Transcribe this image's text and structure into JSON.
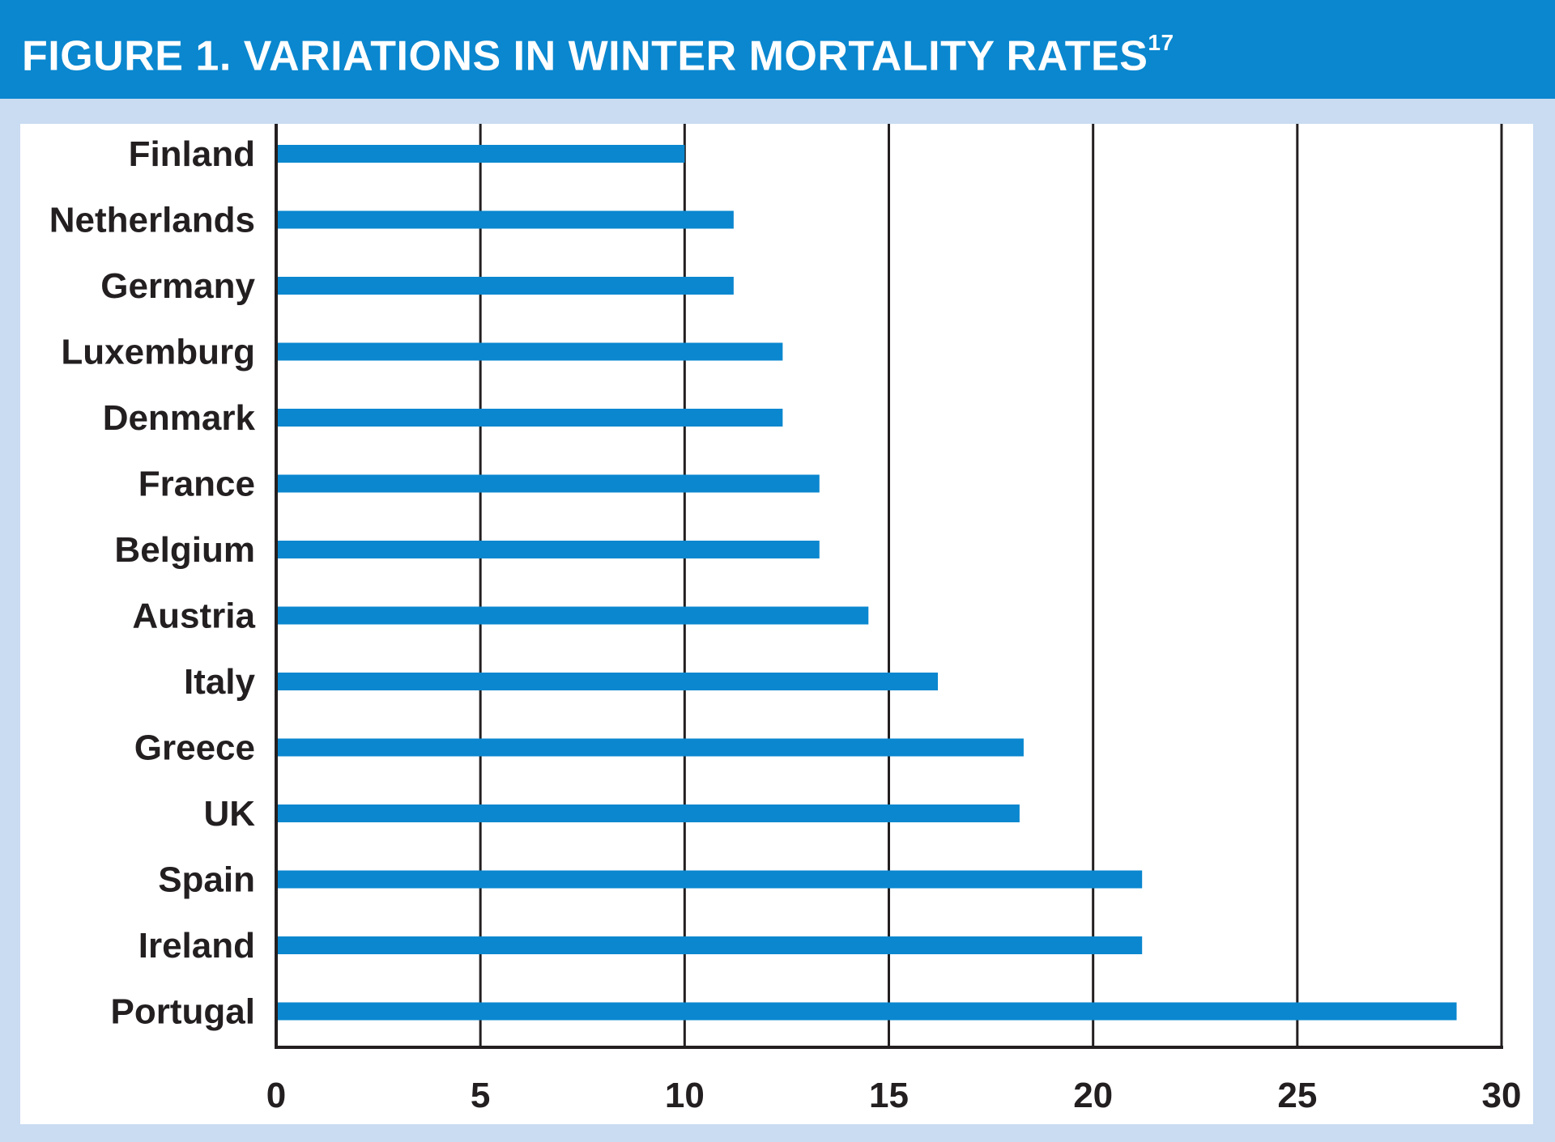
{
  "header": {
    "title": "FIGURE 1. VARIATIONS IN WINTER MORTALITY RATES",
    "superscript": "17"
  },
  "colors": {
    "header_bg": "#0a87cf",
    "bar": "#0a87cf",
    "frame": "#c9dcf2",
    "axis": "#231f20"
  },
  "chart_data": {
    "type": "bar",
    "orientation": "horizontal",
    "title": "FIGURE 1. VARIATIONS IN WINTER MORTALITY RATES17",
    "xlabel": "",
    "ylabel": "",
    "xlim": [
      0,
      30
    ],
    "xticks": [
      0,
      5,
      10,
      15,
      20,
      25,
      30
    ],
    "grid": true,
    "categories": [
      "Finland",
      "Netherlands",
      "Germany",
      "Luxemburg",
      "Denmark",
      "France",
      "Belgium",
      "Austria",
      "Italy",
      "Greece",
      "UK",
      "Spain",
      "Ireland",
      "Portugal"
    ],
    "values": [
      10.0,
      11.2,
      11.2,
      12.4,
      12.4,
      13.3,
      13.3,
      14.5,
      16.2,
      18.3,
      18.2,
      21.2,
      21.2,
      28.9
    ]
  }
}
